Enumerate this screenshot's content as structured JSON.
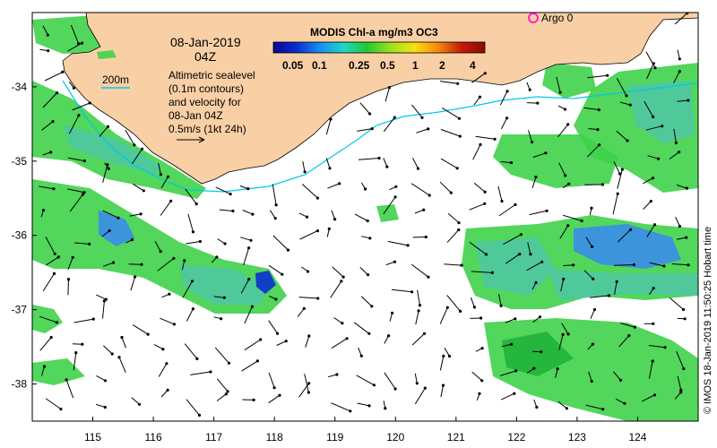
{
  "map": {
    "product": "MODIS Chl-a mg/m3 OC3",
    "date_label": "08-Jan-2019",
    "time_label": "04Z",
    "contour_legend_label": "200m",
    "info_lines": [
      "Altimetric sealevel",
      "(0.1m contours)",
      "and velocity for",
      "08-Jan 04Z",
      "0.5m/s (1kt 24h)"
    ],
    "argo_label": "Argo 0",
    "credit": "© IMOS 18-Jan-2019 11:50:25 Hobart time",
    "colorbar": {
      "ticks": [
        "0.05",
        "0.1",
        "0.25",
        "0.5",
        "1",
        "2",
        "4"
      ],
      "colors": [
        "#08088f",
        "#0a2fd0",
        "#1b8ff2",
        "#1ed6c6",
        "#24c832",
        "#9be21e",
        "#f7e014",
        "#f48a0c",
        "#c41a08",
        "#8a0b04"
      ]
    },
    "x_axis": {
      "ticks": [
        "115",
        "116",
        "117",
        "118",
        "119",
        "120",
        "121",
        "122",
        "123",
        "124"
      ],
      "range": [
        114.0,
        125.0
      ]
    },
    "y_axis": {
      "ticks": [
        "-34",
        "-35",
        "-36",
        "-37",
        "-38"
      ],
      "range": [
        -38.5,
        -33.0
      ]
    },
    "colors": {
      "land": "#f9cfa5",
      "ocean_nodata": "#ffffff",
      "chl_green": "#3fd14a",
      "chl_dark_green": "#20b43a",
      "chl_teal": "#4fc8a0",
      "chl_blue": "#3a8de8",
      "chl_deep_blue": "#0a2fd0",
      "contour_200m": "#00c8e8",
      "argo_marker": "#ff22cc",
      "arrow": "#000000"
    }
  }
}
